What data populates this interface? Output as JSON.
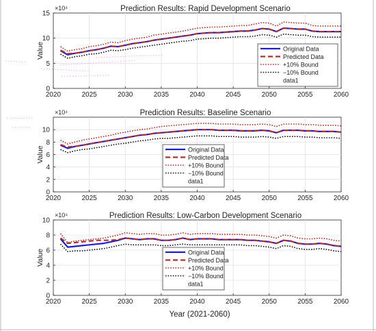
{
  "xlabel": "Year (2021-2060)",
  "colors": {
    "original": "#1f1fcc",
    "predicted": "#b0302a",
    "upper": "#b0302a",
    "lower": "#111111",
    "ghost": "#ee66cc"
  },
  "chart_data": [
    {
      "type": "line",
      "title": "Prediction Results: Rapid Development Scenario",
      "xlabel": "",
      "ylabel": "Value",
      "exponent_label": "×10⁴",
      "xlim": [
        2020,
        2060
      ],
      "ylim": [
        0,
        15
      ],
      "x_ticks": [
        "2020",
        "2025",
        "2030",
        "2035",
        "2040",
        "2045",
        "2050",
        "2055",
        "2060"
      ],
      "y_ticks": [
        "0",
        "5",
        "10",
        "15"
      ],
      "legend_position": "lower-right",
      "legend": [
        "Original Data",
        "Predicted Data",
        "+10% Bound",
        "−10% Bound",
        "data1"
      ],
      "x": [
        2021,
        2022,
        2023,
        2024,
        2025,
        2026,
        2027,
        2028,
        2029,
        2030,
        2031,
        2032,
        2033,
        2034,
        2035,
        2036,
        2037,
        2038,
        2039,
        2040,
        2041,
        2042,
        2043,
        2044,
        2045,
        2046,
        2047,
        2048,
        2049,
        2050,
        2051,
        2052,
        2053,
        2054,
        2055,
        2056,
        2057,
        2058,
        2059,
        2060
      ],
      "series": [
        {
          "name": "Original Data",
          "values": [
            7.5,
            6.7,
            7.0,
            7.2,
            7.5,
            7.7,
            8.0,
            8.4,
            8.3,
            8.6,
            8.9,
            9.1,
            9.3,
            9.6,
            9.8,
            10.0,
            10.2,
            10.4,
            10.6,
            10.9,
            11.0,
            11.1,
            11.1,
            11.2,
            11.3,
            11.4,
            11.4,
            11.6,
            11.9,
            11.8,
            11.3,
            12.0,
            11.9,
            11.8,
            11.8,
            11.4,
            11.3,
            11.3,
            11.3,
            11.3
          ]
        },
        {
          "name": "Predicted Data",
          "values": [
            7.6,
            6.9,
            7.0,
            7.2,
            7.5,
            7.7,
            8.0,
            8.4,
            8.3,
            8.6,
            8.9,
            9.1,
            9.3,
            9.6,
            9.8,
            10.0,
            10.2,
            10.4,
            10.6,
            10.9,
            11.0,
            11.1,
            11.1,
            11.2,
            11.3,
            11.4,
            11.4,
            11.6,
            11.9,
            11.8,
            11.3,
            12.0,
            11.9,
            11.8,
            11.8,
            11.4,
            11.3,
            11.3,
            11.3,
            11.3
          ]
        },
        {
          "name": "+10% Bound",
          "values": [
            8.3,
            7.4,
            7.7,
            7.9,
            8.3,
            8.5,
            8.8,
            9.2,
            9.1,
            9.5,
            9.8,
            10.0,
            10.2,
            10.6,
            10.8,
            11.0,
            11.2,
            11.4,
            11.7,
            12.0,
            12.1,
            12.2,
            12.2,
            12.3,
            12.4,
            12.5,
            12.5,
            12.8,
            13.1,
            13.0,
            12.4,
            13.2,
            13.1,
            13.0,
            13.0,
            12.5,
            12.4,
            12.4,
            12.4,
            12.4
          ]
        },
        {
          "name": "−10% Bound",
          "values": [
            6.8,
            6.0,
            6.3,
            6.5,
            6.8,
            6.9,
            7.2,
            7.6,
            7.5,
            7.7,
            8.0,
            8.2,
            8.4,
            8.6,
            8.8,
            9.0,
            9.2,
            9.4,
            9.5,
            9.8,
            9.9,
            10.0,
            10.0,
            10.1,
            10.2,
            10.3,
            10.3,
            10.4,
            10.7,
            10.6,
            10.2,
            10.8,
            10.7,
            10.6,
            10.6,
            10.3,
            10.2,
            10.2,
            10.2,
            10.2
          ]
        }
      ]
    },
    {
      "type": "line",
      "title": "Prediction Results: Baseline Scenario",
      "xlabel": "",
      "ylabel": "Value",
      "exponent_label": "×10⁴",
      "xlim": [
        2020,
        2060
      ],
      "ylim": [
        0,
        12
      ],
      "x_ticks": [
        "2020",
        "2025",
        "2030",
        "2035",
        "2040",
        "2045",
        "2050",
        "2055",
        "2060"
      ],
      "y_ticks": [
        "0",
        "2",
        "4",
        "6",
        "8",
        "10"
      ],
      "legend_position": "lower-center",
      "legend": [
        "Original Data",
        "Predicted Data",
        "+10% Bound",
        "−10% Bound",
        "data1"
      ],
      "x": [
        2021,
        2022,
        2023,
        2024,
        2025,
        2026,
        2027,
        2028,
        2029,
        2030,
        2031,
        2032,
        2033,
        2034,
        2035,
        2036,
        2037,
        2038,
        2039,
        2040,
        2041,
        2042,
        2043,
        2044,
        2045,
        2046,
        2047,
        2048,
        2049,
        2050,
        2051,
        2052,
        2053,
        2054,
        2055,
        2056,
        2057,
        2058,
        2059,
        2060
      ],
      "series": [
        {
          "name": "Original Data",
          "values": [
            7.5,
            7.0,
            7.3,
            7.5,
            7.7,
            7.9,
            8.1,
            8.3,
            8.5,
            8.7,
            8.9,
            9.1,
            9.2,
            9.4,
            9.5,
            9.6,
            9.7,
            9.8,
            9.9,
            10.0,
            10.0,
            10.0,
            9.9,
            9.9,
            9.9,
            9.8,
            9.8,
            9.8,
            9.9,
            9.8,
            9.5,
            9.9,
            9.9,
            9.9,
            9.8,
            9.8,
            9.7,
            9.7,
            9.7,
            9.6
          ]
        },
        {
          "name": "Predicted Data",
          "values": [
            7.6,
            7.2,
            7.3,
            7.5,
            7.7,
            7.9,
            8.1,
            8.3,
            8.5,
            8.7,
            8.9,
            9.1,
            9.2,
            9.4,
            9.5,
            9.6,
            9.7,
            9.8,
            9.9,
            10.0,
            10.0,
            10.0,
            9.9,
            9.9,
            9.9,
            9.8,
            9.8,
            9.8,
            9.9,
            9.8,
            9.5,
            9.9,
            9.9,
            9.9,
            9.8,
            9.8,
            9.7,
            9.7,
            9.7,
            9.6
          ]
        },
        {
          "name": "+10% Bound",
          "values": [
            8.3,
            7.7,
            8.0,
            8.3,
            8.5,
            8.7,
            8.9,
            9.1,
            9.4,
            9.6,
            9.8,
            10.0,
            10.1,
            10.3,
            10.5,
            10.6,
            10.7,
            10.8,
            10.9,
            11.0,
            11.0,
            11.0,
            10.9,
            10.9,
            10.9,
            10.8,
            10.8,
            10.8,
            10.9,
            10.8,
            10.5,
            10.9,
            10.9,
            10.9,
            10.8,
            10.8,
            10.7,
            10.7,
            10.7,
            10.6
          ]
        },
        {
          "name": "−10% Bound",
          "values": [
            6.8,
            6.3,
            6.6,
            6.8,
            6.9,
            7.1,
            7.3,
            7.5,
            7.7,
            7.8,
            8.0,
            8.2,
            8.3,
            8.5,
            8.6,
            8.6,
            8.7,
            8.8,
            8.9,
            9.0,
            9.0,
            9.0,
            8.9,
            8.9,
            8.9,
            8.8,
            8.8,
            8.8,
            8.9,
            8.8,
            8.6,
            8.9,
            8.9,
            8.9,
            8.8,
            8.8,
            8.7,
            8.7,
            8.7,
            8.6
          ]
        }
      ]
    },
    {
      "type": "line",
      "title": "Prediction Results: Low-Carbon Development Scenario",
      "xlabel": "Year (2021-2060)",
      "ylabel": "Value",
      "exponent_label": "×10⁴",
      "xlim": [
        2020,
        2060
      ],
      "ylim": [
        0,
        10
      ],
      "x_ticks": [
        "2020",
        "2025",
        "2030",
        "2035",
        "2040",
        "2045",
        "2050",
        "2055",
        "2060"
      ],
      "y_ticks": [
        "0",
        "2",
        "4",
        "6",
        "8",
        "10"
      ],
      "legend_position": "lower-center",
      "legend": [
        "Original Data",
        "Predicted Data",
        "+10% Bound",
        "−10% Bound",
        "data1"
      ],
      "x": [
        2021,
        2022,
        2023,
        2024,
        2025,
        2026,
        2027,
        2028,
        2029,
        2030,
        2031,
        2032,
        2033,
        2034,
        2035,
        2036,
        2037,
        2038,
        2039,
        2040,
        2041,
        2042,
        2043,
        2044,
        2045,
        2046,
        2047,
        2048,
        2049,
        2050,
        2051,
        2052,
        2053,
        2054,
        2055,
        2056,
        2057,
        2058,
        2059,
        2060
      ],
      "series": [
        {
          "name": "Original Data",
          "values": [
            7.5,
            6.4,
            6.5,
            6.6,
            6.7,
            6.8,
            6.9,
            7.1,
            7.3,
            7.6,
            7.5,
            7.4,
            7.5,
            7.5,
            7.3,
            7.3,
            7.4,
            7.6,
            7.4,
            7.5,
            7.5,
            7.5,
            7.4,
            7.4,
            7.4,
            7.4,
            7.3,
            7.3,
            7.2,
            7.1,
            6.9,
            7.3,
            7.2,
            6.9,
            6.8,
            6.8,
            6.9,
            6.8,
            6.6,
            6.5
          ]
        },
        {
          "name": "Predicted Data",
          "values": [
            7.6,
            6.9,
            7.0,
            7.1,
            7.2,
            7.3,
            7.3,
            7.3,
            7.4,
            7.6,
            7.5,
            7.4,
            7.5,
            7.5,
            7.3,
            7.3,
            7.4,
            7.6,
            7.4,
            7.5,
            7.5,
            7.5,
            7.4,
            7.4,
            7.4,
            7.4,
            7.3,
            7.3,
            7.2,
            7.1,
            6.9,
            7.3,
            7.2,
            6.9,
            6.8,
            6.8,
            6.9,
            6.8,
            6.6,
            6.5
          ]
        },
        {
          "name": "+10% Bound",
          "values": [
            8.2,
            7.0,
            7.2,
            7.3,
            7.4,
            7.5,
            7.6,
            7.8,
            8.0,
            8.3,
            8.2,
            8.1,
            8.2,
            8.2,
            8.0,
            8.0,
            8.1,
            8.3,
            8.1,
            8.2,
            8.2,
            8.2,
            8.1,
            8.1,
            8.1,
            8.1,
            8.0,
            8.0,
            7.9,
            7.8,
            7.6,
            8.0,
            7.9,
            7.6,
            7.5,
            7.5,
            7.6,
            7.5,
            7.3,
            7.2
          ]
        },
        {
          "name": "−10% Bound",
          "values": [
            6.8,
            5.8,
            5.9,
            5.9,
            6.0,
            6.1,
            6.2,
            6.4,
            6.6,
            6.8,
            6.7,
            6.7,
            6.7,
            6.7,
            6.6,
            6.6,
            6.7,
            6.8,
            6.7,
            6.7,
            6.7,
            6.7,
            6.7,
            6.7,
            6.7,
            6.7,
            6.6,
            6.6,
            6.5,
            6.4,
            6.2,
            6.6,
            6.5,
            6.2,
            6.1,
            6.1,
            6.2,
            6.1,
            5.9,
            5.8
          ]
        }
      ]
    }
  ]
}
